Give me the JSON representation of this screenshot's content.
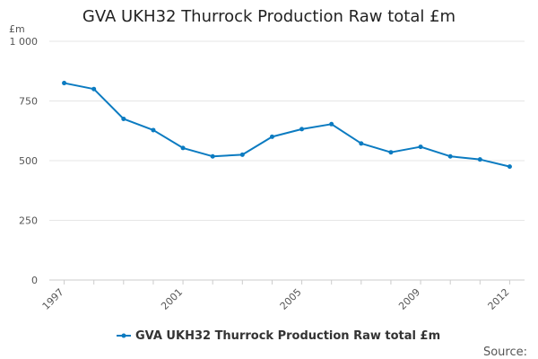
{
  "chart_data": {
    "type": "line",
    "title": "GVA UKH32 Thurrock Production Raw total £m",
    "ylabel": "£m",
    "xlabel": "",
    "x": [
      1997,
      1998,
      1999,
      2000,
      2001,
      2002,
      2003,
      2004,
      2005,
      2006,
      2007,
      2008,
      2009,
      2010,
      2011,
      2012
    ],
    "x_tick_labels": [
      "1997",
      "2001",
      "2005",
      "2009",
      "2012"
    ],
    "y_tick_labels": [
      "0",
      "250",
      "500",
      "750",
      "1 000"
    ],
    "y_ticks": [
      0,
      250,
      500,
      750,
      1000
    ],
    "ylim": [
      0,
      1000
    ],
    "grid": true,
    "legend_position": "bottom",
    "series": [
      {
        "name": "GVA UKH32 Thurrock Production Raw total £m",
        "color": "#0b7bc1",
        "values": [
          825,
          800,
          675,
          628,
          553,
          518,
          525,
          600,
          632,
          653,
          572,
          535,
          558,
          518,
          505,
          475
        ]
      }
    ]
  },
  "footer": {
    "source_label": "Source:"
  }
}
